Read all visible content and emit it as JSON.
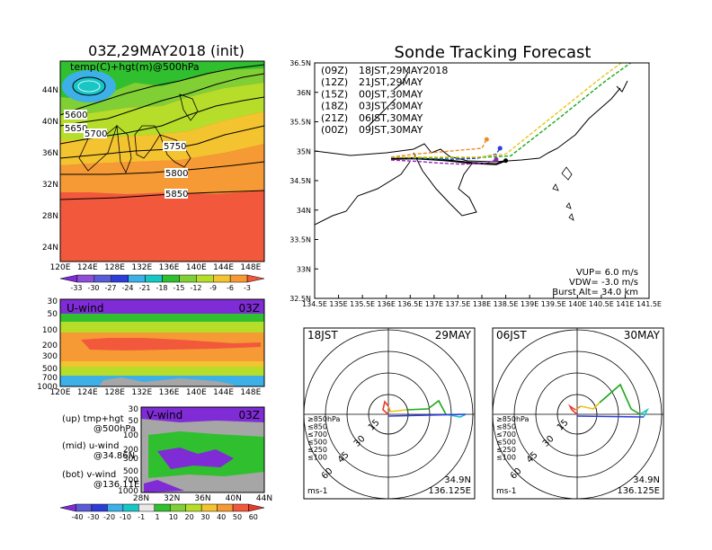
{
  "left_title": "03Z,29MAY2018 (init)",
  "right_title": "Sonde Tracking Forecast",
  "map500": {
    "label": "temp(C)+hgt(m)@500hPa",
    "contour_labels": [
      "5600",
      "5650",
      "5700",
      "5750",
      "5800",
      "5850"
    ],
    "lon_ticks": [
      "120E",
      "124E",
      "128E",
      "132E",
      "136E",
      "140E",
      "144E",
      "148E"
    ],
    "lat_ticks": [
      "44N",
      "40N",
      "36N",
      "32N",
      "28N",
      "24N"
    ],
    "colorbar_labels": [
      "-33",
      "-30",
      "-27",
      "-24",
      "-21",
      "-18",
      "-15",
      "-12",
      "-9",
      "-6",
      "-3"
    ]
  },
  "uwind": {
    "title": "U-wind",
    "time": "03Z",
    "p_ticks": [
      "30",
      "50",
      "100",
      "200",
      "300",
      "500",
      "700",
      "1000"
    ],
    "lon_ticks": [
      "120E",
      "124E",
      "128E",
      "132E",
      "136E",
      "140E",
      "144E",
      "148E"
    ]
  },
  "vwind": {
    "title": "V-wind",
    "time": "03Z",
    "p_ticks": [
      "30",
      "50",
      "100",
      "200",
      "300",
      "500",
      "700",
      "1000"
    ],
    "lat_ticks": [
      "28N",
      "32N",
      "36N",
      "40N",
      "44N"
    ],
    "colorbar_labels": [
      "-40",
      "-30",
      "-20",
      "-10",
      "-1",
      "1",
      "10",
      "20",
      "30",
      "40",
      "50",
      "60"
    ]
  },
  "notes": [
    {
      "head": "(up) tmp+hgt",
      "sub": "@500hPa"
    },
    {
      "head": "(mid) u-wind",
      "sub": "@34.86N"
    },
    {
      "head": "(bot) v-wind",
      "sub": "@136.11E"
    }
  ],
  "tracking": {
    "x_ticks": [
      "134.5E",
      "135E",
      "135.5E",
      "136E",
      "136.5E",
      "137E",
      "137.5E",
      "138E",
      "138.5E",
      "139E",
      "139.5E",
      "140E",
      "140.5E",
      "141E",
      "141.5E"
    ],
    "y_ticks": [
      "36.5N",
      "36N",
      "35.5N",
      "35N",
      "34.5N",
      "34N",
      "33.5N",
      "33N",
      "32.5N"
    ],
    "xlim": [
      134.5,
      141.5
    ],
    "ylim": [
      32.5,
      36.5
    ],
    "legend": [
      {
        "run": "(09Z)",
        "time": "18JST,29MAY2018",
        "color": "#000000"
      },
      {
        "run": "(12Z)",
        "time": "21JST,29MAY",
        "color": "#9b1fbf"
      },
      {
        "run": "(15Z)",
        "time": "00JST,30MAY",
        "color": "#2d3ed8"
      },
      {
        "run": "(18Z)",
        "time": "03JST,30MAY",
        "color": "#1ba81b"
      },
      {
        "run": "(21Z)",
        "time": "06JST,30MAY",
        "color": "#e8c61a"
      },
      {
        "run": "(00Z)",
        "time": "09JST,30MAY",
        "color": "#f08a22"
      }
    ],
    "params": [
      "VUP=  6.0 m/s",
      "VDW= -3.0 m/s",
      "Burst Alt= 34.0 km"
    ]
  },
  "chart_data": {
    "type": "line",
    "title": "Sonde Tracking Forecast",
    "xlabel": "",
    "ylabel": "",
    "xlim": [
      134.5,
      141.5
    ],
    "ylim": [
      32.5,
      36.5
    ],
    "series": [
      {
        "name": "(09Z) 18JST,29MAY2018",
        "color": "#000000",
        "x": [
          136.1,
          136.6,
          137.2,
          137.8,
          138.3,
          138.5
        ],
        "y": [
          34.87,
          34.88,
          34.85,
          34.8,
          34.78,
          34.84
        ]
      },
      {
        "name": "(12Z) 21JST,29MAY",
        "color": "#9b1fbf",
        "x": [
          136.1,
          136.6,
          137.1,
          137.6,
          138.1,
          138.3
        ],
        "y": [
          34.85,
          34.83,
          34.8,
          34.78,
          34.8,
          34.86
        ]
      },
      {
        "name": "(15Z) 00JST,30MAY",
        "color": "#2d3ed8",
        "x": [
          136.1,
          136.7,
          137.3,
          137.9,
          138.3,
          138.38
        ],
        "y": [
          34.9,
          34.88,
          34.86,
          34.88,
          34.95,
          35.05
        ]
      },
      {
        "name": "(18Z) 03JST,30MAY",
        "color": "#1ba81b",
        "x": [
          136.1,
          137.0,
          138.1,
          138.6,
          139.6,
          140.6,
          141.2
        ],
        "y": [
          34.9,
          34.88,
          34.9,
          34.92,
          35.55,
          36.2,
          36.55
        ]
      },
      {
        "name": "(21Z) 06JST,30MAY",
        "color": "#e8c61a",
        "x": [
          136.1,
          137.0,
          137.9,
          138.5,
          139.5,
          140.5,
          141.0
        ],
        "y": [
          34.9,
          34.9,
          34.9,
          34.95,
          35.6,
          36.25,
          36.55
        ]
      },
      {
        "name": "(00Z) 09JST,30MAY",
        "color": "#f08a22",
        "x": [
          136.1,
          136.6,
          137.3,
          138.0,
          138.1
        ],
        "y": [
          34.9,
          34.95,
          35.0,
          35.05,
          35.2
        ]
      }
    ]
  },
  "hodo_left": {
    "jst": "18JST",
    "date": "29MAY",
    "unit": "ms-1",
    "lat": "34.9N",
    "lon": "136.125E",
    "rings": [
      "15",
      "30",
      "45",
      "60"
    ],
    "legend": [
      {
        "label": "≥850hPa",
        "color": "#e83a2a"
      },
      {
        "label": "≤850",
        "color": "#f08a22"
      },
      {
        "label": "≤700",
        "color": "#e8c61a"
      },
      {
        "label": "≤500",
        "color": "#1ba81b"
      },
      {
        "label": "≤250",
        "color": "#18c6c6"
      },
      {
        "label": "≤100",
        "color": "#2d3ed8"
      }
    ]
  },
  "hodo_right": {
    "jst": "06JST",
    "date": "30MAY",
    "unit": "ms-1",
    "lat": "34.9N",
    "lon": "136.125E",
    "rings": [
      "15",
      "30",
      "45",
      "60"
    ],
    "legend": [
      {
        "label": "≥850hPa",
        "color": "#e83a2a"
      },
      {
        "label": "≤850",
        "color": "#f08a22"
      },
      {
        "label": "≤700",
        "color": "#e8c61a"
      },
      {
        "label": "≤500",
        "color": "#1ba81b"
      },
      {
        "label": "≤250",
        "color": "#18c6c6"
      },
      {
        "label": "≤100",
        "color": "#2d3ed8"
      }
    ]
  }
}
